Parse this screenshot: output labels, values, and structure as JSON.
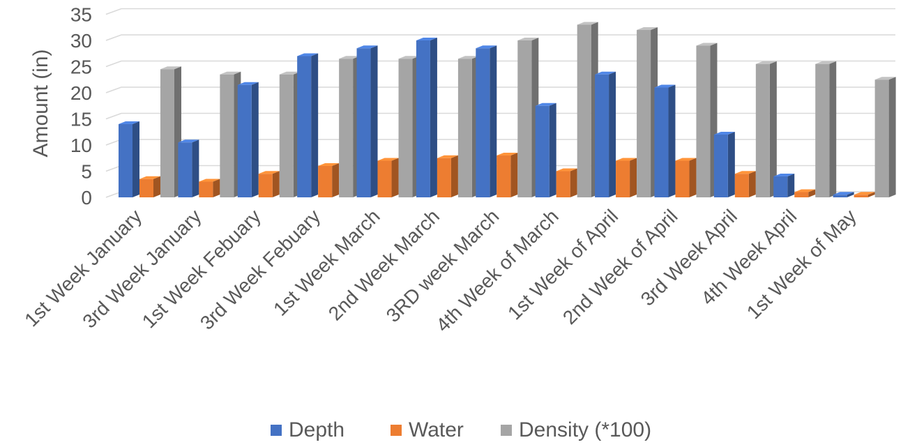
{
  "chart_data": {
    "type": "bar",
    "subtype": "3d-clustered-column",
    "title": "",
    "xlabel": "",
    "ylabel": "Amount (in)",
    "ylim": [
      0,
      35
    ],
    "yticks": [
      0,
      5,
      10,
      15,
      20,
      25,
      30,
      35
    ],
    "grid": true,
    "legend_position": "bottom",
    "categories": [
      "1st Week January",
      "3rd Week January",
      "1st Week Febuary",
      "3rd Week Febuary",
      "1st Week March",
      "2nd Week March",
      "3RD week March",
      "4th Week of March",
      "1st Week of April",
      "2nd Week of April",
      "3rd Week April",
      "4th Week April",
      "1st Week of May"
    ],
    "series": [
      {
        "name": "Depth",
        "color": "#4472c4",
        "values": [
          14,
          10.5,
          21.5,
          27,
          28.5,
          30,
          28.5,
          17.5,
          23.5,
          21,
          12,
          4,
          0.5
        ]
      },
      {
        "name": "Water",
        "color": "#ed7d31",
        "values": [
          3.5,
          3,
          4.5,
          6,
          7,
          7.5,
          8,
          5,
          7,
          7,
          4.5,
          1,
          0.5
        ]
      },
      {
        "name": "Density (*100)",
        "color": "#a5a5a5",
        "values": [
          24.5,
          23.5,
          23.5,
          26.5,
          26.5,
          26.5,
          30,
          33,
          32,
          29,
          25.5,
          25.5,
          22.5
        ]
      }
    ]
  }
}
